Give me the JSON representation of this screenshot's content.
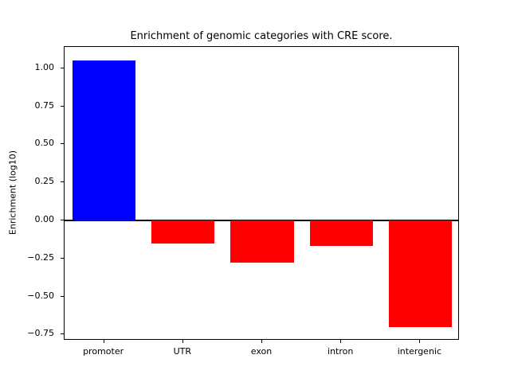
{
  "chart_data": {
    "type": "bar",
    "title": "Enrichment of genomic categories with CRE score.",
    "ylabel": "Enrichment (log10)",
    "categories": [
      "promoter",
      "UTR",
      "exon",
      "intron",
      "intergenic"
    ],
    "values": [
      1.05,
      -0.15,
      -0.28,
      -0.17,
      -0.7
    ],
    "bar_colors": [
      "#0000ff",
      "#ff0000",
      "#ff0000",
      "#ff0000",
      "#ff0000"
    ],
    "positive_color": "#0000ff",
    "negative_color": "#ff0000",
    "baseline": 0,
    "ylim": [
      -0.79,
      1.14
    ],
    "yticks": [
      {
        "value": 1.0,
        "label": "1.00"
      },
      {
        "value": 0.75,
        "label": "0.75"
      },
      {
        "value": 0.5,
        "label": "0.50"
      },
      {
        "value": 0.25,
        "label": "0.25"
      },
      {
        "value": 0.0,
        "label": "0.00"
      },
      {
        "value": -0.25,
        "label": "−0.25"
      },
      {
        "value": -0.5,
        "label": "−0.50"
      },
      {
        "value": -0.75,
        "label": "−0.75"
      }
    ],
    "grid": false,
    "legend_position": "none"
  }
}
